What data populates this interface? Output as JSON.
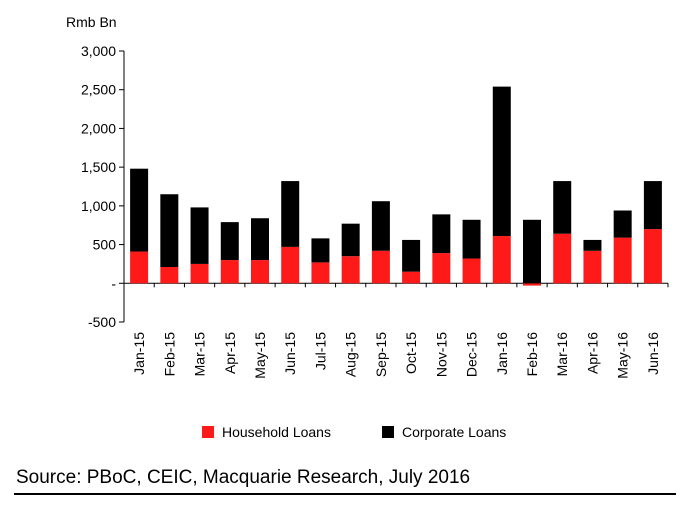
{
  "unit_label": "Rmb Bn",
  "source": "Source: PBoC, CEIC, Macquarie Research, July 2016",
  "colors": {
    "household": "#ff1a1a",
    "corporate": "#000000"
  },
  "chart_data": {
    "type": "bar",
    "stacked": true,
    "ylabel": "Rmb Bn",
    "ylim": [
      -500,
      3000
    ],
    "yticks": [
      -500,
      0,
      500,
      1000,
      1500,
      2000,
      2500,
      3000
    ],
    "ytick_labels": [
      "-500",
      "-",
      "500",
      "1,000",
      "1,500",
      "2,000",
      "2,500",
      "3,000"
    ],
    "categories": [
      "Jan-15",
      "Feb-15",
      "Mar-15",
      "Apr-15",
      "May-15",
      "Jun-15",
      "Jul-15",
      "Aug-15",
      "Sep-15",
      "Oct-15",
      "Nov-15",
      "Dec-15",
      "Jan-16",
      "Feb-16",
      "Mar-16",
      "Apr-16",
      "May-16",
      "Jun-16"
    ],
    "series": [
      {
        "name": "Household Loans",
        "values": [
          410,
          210,
          250,
          300,
          300,
          470,
          270,
          350,
          420,
          150,
          390,
          320,
          610,
          -30,
          640,
          420,
          590,
          700
        ]
      },
      {
        "name": "Corporate Loans",
        "values": [
          1070,
          940,
          730,
          490,
          540,
          850,
          310,
          420,
          640,
          410,
          500,
          500,
          1930,
          820,
          680,
          140,
          350,
          620
        ]
      }
    ],
    "legend_position": "bottom",
    "grid": false
  },
  "legend": [
    {
      "label": "Household Loans",
      "color": "#ff1a1a"
    },
    {
      "label": "Corporate Loans",
      "color": "#000000"
    }
  ]
}
